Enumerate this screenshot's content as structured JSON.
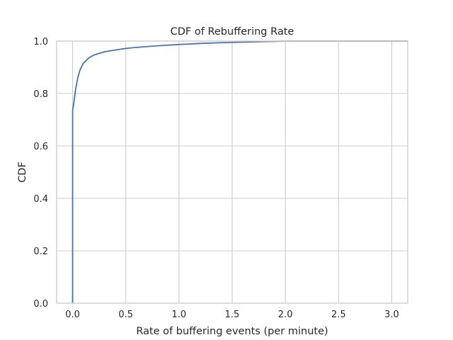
{
  "chart_data": {
    "type": "line",
    "title": "CDF of Rebuffering Rate",
    "xlabel": "Rate of buffering events (per minute)",
    "ylabel": "CDF",
    "xlim": [
      -0.15,
      3.15
    ],
    "ylim": [
      0.0,
      1.0
    ],
    "x_ticks": [
      0.0,
      0.5,
      1.0,
      1.5,
      2.0,
      2.5,
      3.0
    ],
    "x_tick_labels": [
      "0.0",
      "0.5",
      "1.0",
      "1.5",
      "2.0",
      "2.5",
      "3.0"
    ],
    "y_ticks": [
      0.0,
      0.2,
      0.4,
      0.6,
      0.8,
      1.0
    ],
    "y_tick_labels": [
      "0.0",
      "0.2",
      "0.4",
      "0.6",
      "0.8",
      "1.0"
    ],
    "grid": true,
    "legend": "none",
    "series": [
      {
        "color": "#4c72b0",
        "x": [
          0.0,
          0.0,
          0.0,
          0.01,
          0.02,
          0.03,
          0.05,
          0.07,
          0.1,
          0.15,
          0.2,
          0.3,
          0.4,
          0.5,
          0.6,
          0.7,
          0.8,
          1.0,
          1.2,
          1.4,
          1.6,
          1.8,
          2.0
        ],
        "y": [
          0.0,
          0.6,
          0.733,
          0.76,
          0.79,
          0.82,
          0.862,
          0.89,
          0.915,
          0.935,
          0.947,
          0.959,
          0.966,
          0.972,
          0.976,
          0.979,
          0.982,
          0.987,
          0.991,
          0.994,
          0.996,
          0.998,
          1.0
        ]
      }
    ]
  }
}
